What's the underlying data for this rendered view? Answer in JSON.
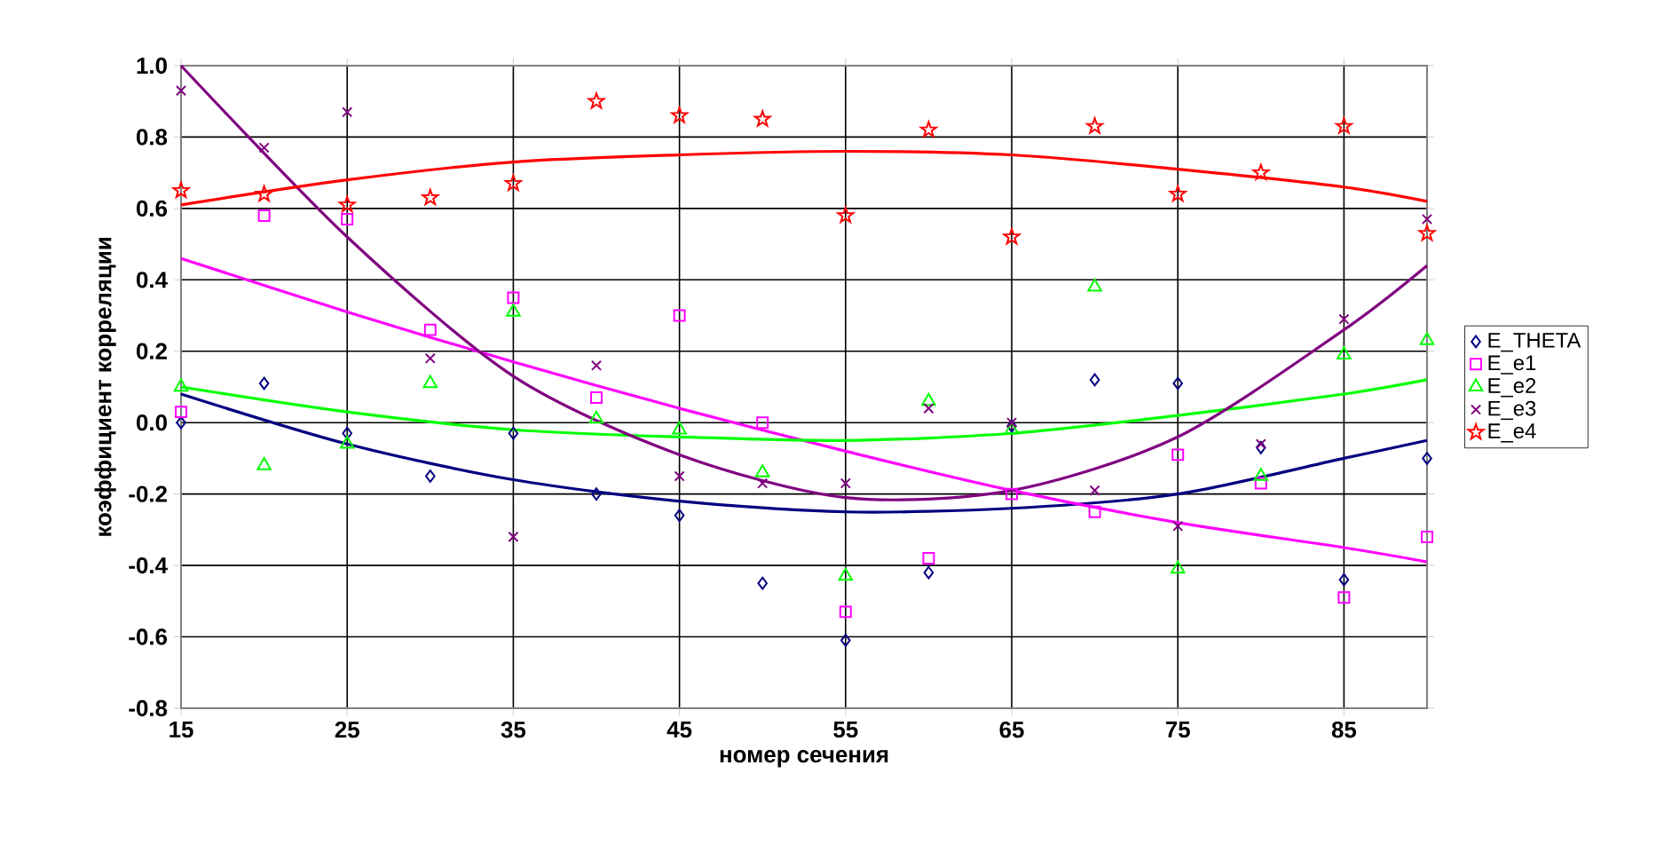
{
  "chart_data": {
    "type": "scatter",
    "xlabel": "номер сечения",
    "ylabel": "коэффициент корреляции",
    "x": [
      15,
      20,
      25,
      30,
      35,
      40,
      45,
      50,
      55,
      60,
      65,
      70,
      75,
      80,
      85,
      90
    ],
    "xlim": [
      15,
      90
    ],
    "xticks": [
      15,
      25,
      35,
      45,
      55,
      65,
      75,
      85
    ],
    "ylim": [
      -0.8,
      1.0
    ],
    "yticks": [
      {
        "value": -0.8,
        "label": "-0.8"
      },
      {
        "value": -0.6,
        "label": "-0.6"
      },
      {
        "value": -0.4,
        "label": "-0.4"
      },
      {
        "value": -0.2,
        "label": "-0.2"
      },
      {
        "value": 0,
        "label": "0.0"
      },
      {
        "value": 0.2,
        "label": "0.2"
      },
      {
        "value": 0.4,
        "label": "0.4"
      },
      {
        "value": 0.6,
        "label": "0.6"
      },
      {
        "value": 0.8,
        "label": "0.8"
      },
      {
        "value": 1.0,
        "label": "1.0"
      }
    ],
    "grid": true,
    "legend": "right",
    "series": [
      {
        "name": "E_THETA",
        "color": "#000080",
        "marker": "diamond",
        "values": [
          0.0,
          0.11,
          -0.03,
          -0.15,
          -0.03,
          -0.2,
          -0.26,
          -0.45,
          -0.61,
          -0.42,
          -0.01,
          0.12,
          0.11,
          -0.07,
          -0.44,
          -0.1
        ]
      },
      {
        "name": "E_e1",
        "color": "#ff00ff",
        "marker": "square",
        "values": [
          0.03,
          0.58,
          0.57,
          0.26,
          0.35,
          0.07,
          0.3,
          0.0,
          -0.53,
          -0.38,
          -0.2,
          -0.25,
          -0.09,
          -0.17,
          -0.49,
          -0.32
        ]
      },
      {
        "name": "E_e2",
        "color": "#00ff00",
        "marker": "triangle",
        "values": [
          0.1,
          -0.12,
          -0.06,
          0.11,
          0.31,
          0.01,
          -0.02,
          -0.14,
          -0.43,
          0.06,
          -0.02,
          0.38,
          -0.41,
          -0.15,
          0.19,
          0.23
        ]
      },
      {
        "name": "E_e3",
        "color": "#800080",
        "marker": "cross",
        "values": [
          0.93,
          0.77,
          0.87,
          0.18,
          -0.32,
          0.16,
          -0.15,
          -0.17,
          -0.17,
          0.04,
          0.0,
          -0.19,
          -0.29,
          -0.06,
          0.29,
          0.57
        ]
      },
      {
        "name": "E_e4",
        "color": "#ff0000",
        "marker": "star",
        "values": [
          0.65,
          0.64,
          0.61,
          0.63,
          0.67,
          0.9,
          0.86,
          0.85,
          0.58,
          0.82,
          0.52,
          0.83,
          0.64,
          0.7,
          0.83,
          0.53
        ]
      },
      {
        "type": "line",
        "color": "#000080",
        "marker": "none",
        "x": [
          15,
          25,
          35,
          45,
          55,
          65,
          75,
          85,
          90
        ],
        "values": [
          0.08,
          -0.06,
          -0.16,
          -0.22,
          -0.25,
          -0.24,
          -0.2,
          -0.1,
          -0.05
        ]
      },
      {
        "type": "line",
        "color": "#ff00ff",
        "marker": "none",
        "x": [
          15,
          25,
          35,
          45,
          55,
          65,
          75,
          85,
          90
        ],
        "values": [
          0.46,
          0.31,
          0.17,
          0.04,
          -0.08,
          -0.19,
          -0.28,
          -0.35,
          -0.39
        ]
      },
      {
        "type": "line",
        "color": "#00ff00",
        "marker": "none",
        "x": [
          15,
          25,
          35,
          45,
          55,
          65,
          75,
          85,
          90
        ],
        "values": [
          0.1,
          0.03,
          -0.02,
          -0.04,
          -0.05,
          -0.03,
          0.02,
          0.08,
          0.12
        ]
      },
      {
        "type": "line",
        "color": "#800080",
        "marker": "none",
        "x": [
          15,
          25,
          35,
          45,
          55,
          65,
          75,
          85,
          90
        ],
        "values": [
          1.0,
          0.52,
          0.13,
          -0.09,
          -0.21,
          -0.19,
          -0.04,
          0.26,
          0.44
        ]
      },
      {
        "type": "line",
        "color": "#ff0000",
        "marker": "none",
        "x": [
          15,
          25,
          35,
          45,
          55,
          65,
          75,
          85,
          90
        ],
        "values": [
          0.61,
          0.68,
          0.73,
          0.75,
          0.76,
          0.75,
          0.71,
          0.66,
          0.62
        ]
      }
    ]
  }
}
